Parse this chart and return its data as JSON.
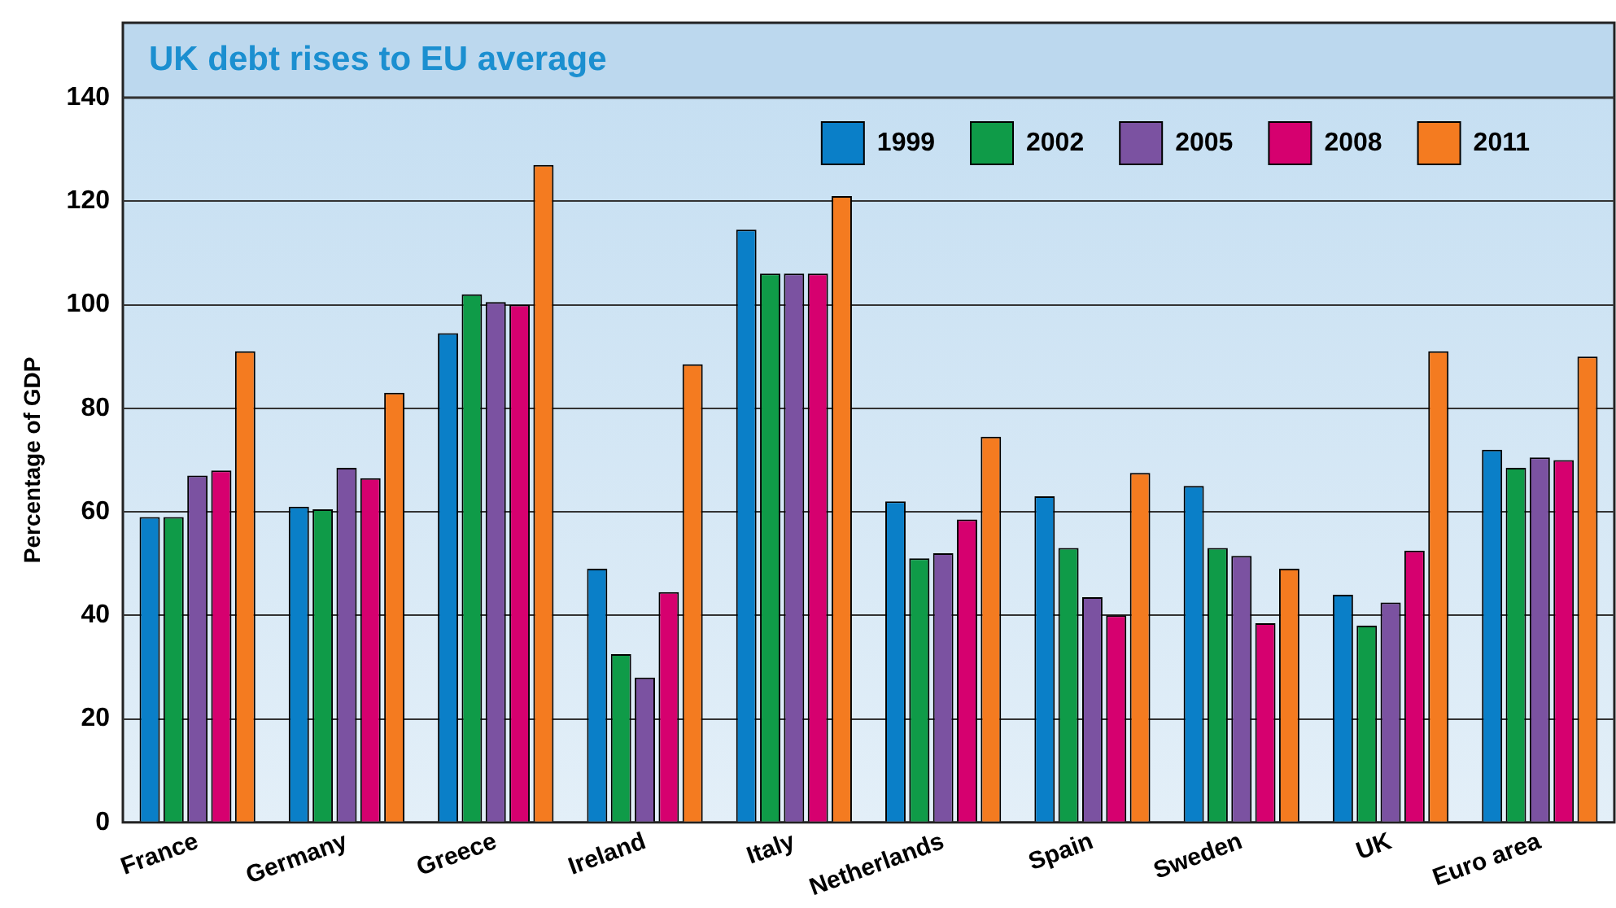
{
  "chart_data": {
    "type": "bar",
    "title": "UK debt rises to EU average",
    "ylabel": "Percentage of GDP",
    "categories": [
      "France",
      "Germany",
      "Greece",
      "Ireland",
      "Italy",
      "Netherlands",
      "Spain",
      "Sweden",
      "UK",
      "Euro area"
    ],
    "series": [
      {
        "name": "1999",
        "color": "#0a7fc8",
        "values": [
          59,
          61,
          94.5,
          49,
          114.5,
          62,
          63,
          65,
          44,
          72
        ]
      },
      {
        "name": "2002",
        "color": "#0f9b48",
        "values": [
          59,
          60.5,
          102,
          32.5,
          106,
          51,
          53,
          53,
          38,
          68.5
        ]
      },
      {
        "name": "2005",
        "color": "#7b52a1",
        "values": [
          67,
          68.5,
          100.5,
          28,
          106,
          52,
          43.5,
          51.5,
          42.5,
          70.5
        ]
      },
      {
        "name": "2008",
        "color": "#d6006f",
        "values": [
          68,
          66.5,
          100,
          44.5,
          106,
          58.5,
          40,
          38.5,
          52.5,
          70
        ]
      },
      {
        "name": "2011",
        "color": "#f47b20",
        "values": [
          91,
          83,
          127,
          88.5,
          121,
          74.5,
          67.5,
          49,
          91,
          90
        ]
      }
    ],
    "ylim": [
      0,
      140
    ],
    "yticks": [
      0,
      20,
      40,
      60,
      80,
      100,
      120,
      140
    ],
    "grid": "y",
    "legend": "top right"
  }
}
